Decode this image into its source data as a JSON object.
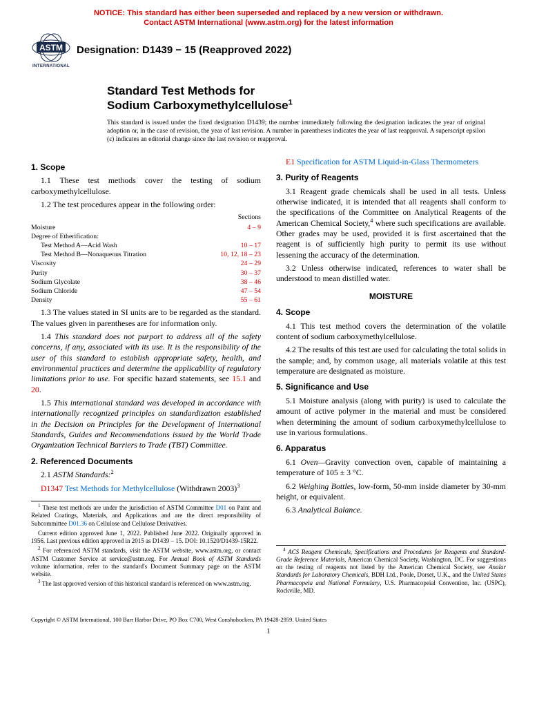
{
  "notice": {
    "line1": "NOTICE: This standard has either been superseded and replaced by a new version or withdrawn.",
    "line2": "Contact ASTM International (www.astm.org) for the latest information"
  },
  "logo": {
    "top_text": "INTERNATIONAL",
    "color": "#1a2a4a"
  },
  "designation": "Designation: D1439 − 15 (Reapproved 2022)",
  "title_line1": "Standard Test Methods for",
  "title_line2": "Sodium Carboxymethylcellulose",
  "title_sup": "1",
  "issued_note": "This standard is issued under the fixed designation D1439; the number immediately following the designation indicates the year of original adoption or, in the case of revision, the year of last revision. A number in parentheses indicates the year of last reapproval. A superscript epsilon (ε) indicates an editorial change since the last revision or reapproval.",
  "left": {
    "h1": "1. Scope",
    "p1_1": "1.1 These test methods cover the testing of sodium carboxymethylcellulose.",
    "p1_2": "1.2 The test procedures appear in the following order:",
    "sections_header": "Sections",
    "sections": [
      {
        "label": "Moisture",
        "range": "4 – 9",
        "indent": false
      },
      {
        "label": "Degree of Etherification:",
        "range": "",
        "indent": false
      },
      {
        "label": "Test Method A—Acid Wash",
        "range": "10 – 17",
        "indent": true
      },
      {
        "label": "Test Method B—Nonaqueous Titration",
        "range": "10, 12, 18 – 23",
        "indent": true
      },
      {
        "label": "Viscosity",
        "range": "24 – 29",
        "indent": false
      },
      {
        "label": "Purity",
        "range": "30 – 37",
        "indent": false
      },
      {
        "label": "Sodium Glycolate",
        "range": "38 – 46",
        "indent": false
      },
      {
        "label": "Sodium Chloride",
        "range": "47 – 54",
        "indent": false
      },
      {
        "label": "Density",
        "range": "55 – 61",
        "indent": false
      }
    ],
    "p1_3": "1.3 The values stated in SI units are to be regarded as the standard. The values given in parentheses are for information only.",
    "p1_4a": "1.4 ",
    "p1_4b": "This standard does not purport to address all of the safety concerns, if any, associated with its use. It is the responsibility of the user of this standard to establish appropriate safety, health, and environmental practices and determine the applicability of regulatory limitations prior to use.",
    "p1_4c": " For specific hazard statements, see ",
    "p1_4d": "15.1",
    "p1_4e": " and ",
    "p1_4f": "20",
    "p1_4g": ".",
    "p1_5a": "1.5 ",
    "p1_5b": "This international standard was developed in accordance with internationally recognized principles on standardization established in the Decision on Principles for the Development of International Standards, Guides and Recommendations issued by the World Trade Organization Technical Barriers to Trade (TBT) Committee.",
    "h2": "2. Referenced Documents",
    "p2_1a": "2.1 ",
    "p2_1b": "ASTM Standards:",
    "p2_1sup": "2",
    "ref1a": "D1347",
    "ref1b": " Test Methods for Methylcellulose",
    "ref1c": " (Withdrawn 2003)",
    "ref1sup": "3",
    "fn1a": "These test methods are under the jurisdiction of ASTM Committee ",
    "fn1b": "D01",
    "fn1c": " on Paint and Related Coatings, Materials, and Applications and are the direct responsibility of Subcommittee ",
    "fn1d": "D01.36",
    "fn1e": " on Cellulose and Cellulose Derivatives.",
    "fn1f": "Current edition approved June 1, 2022. Published June 2022. Originally approved in 1956. Last previous edition approved in 2015 as D1439 – 15. DOI: 10.1520/D1439-15R22.",
    "fn2a": "For referenced ASTM standards, visit the ASTM website, www.astm.org, or contact ASTM Customer Service at service@astm.org. For ",
    "fn2b": "Annual Book of ASTM Standards",
    "fn2c": " volume information, refer to the standard's Document Summary page on the ASTM website.",
    "fn3": "The last approved version of this historical standard is referenced on www.astm.org."
  },
  "right": {
    "ref_e1a": "E1",
    "ref_e1b": " Specification for ASTM Liquid-in-Glass Thermometers",
    "h3": "3. Purity of Reagents",
    "p3_1a": "3.1 Reagent grade chemicals shall be used in all tests. Unless otherwise indicated, it is intended that all reagents shall conform to the specifications of the Committee on Analytical Reagents of the American Chemical Society,",
    "p3_1sup": "4",
    "p3_1b": " where such specifications are available. Other grades may be used, provided it is first ascertained that the reagent is of sufficiently high purity to permit its use without lessening the accuracy of the determination.",
    "p3_2": "3.2 Unless otherwise indicated, references to water shall be understood to mean distilled water.",
    "moisture_head": "MOISTURE",
    "h4": "4. Scope",
    "p4_1": "4.1 This test method covers the determination of the volatile content of sodium carboxymethylcellulose.",
    "p4_2": "4.2 The results of this test are used for calculating the total solids in the sample; and, by common usage, all materials volatile at this test temperature are designated as moisture.",
    "h5": "5. Significance and Use",
    "p5_1": "5.1 Moisture analysis (along with purity) is used to calculate the amount of active polymer in the material and must be considered when determining the amount of sodium carboxymethylcellulose to use in various formulations.",
    "h6": "6. Apparatus",
    "p6_1a": "6.1 ",
    "p6_1b": "Oven—",
    "p6_1c": "Gravity convection oven, capable of maintaining a temperature of 105 ± 3 °C.",
    "p6_2a": "6.2 ",
    "p6_2b": "Weighing Bottles,",
    "p6_2c": " low-form, 50-mm inside diameter by 30-mm height, or equivalent.",
    "p6_3a": "6.3 ",
    "p6_3b": "Analytical Balance.",
    "fn4a": "ACS Reagent Chemicals, Specifications and Procedures for Reagents and Standard-Grade Reference Materials",
    "fn4b": ", American Chemical Society, Washington, DC. For suggestions on the testing of reagents not listed by the American Chemical Society, see ",
    "fn4c": "Analar Standards for Laboratory Chemicals",
    "fn4d": ", BDH Ltd., Poole, Dorset, U.K., and the ",
    "fn4e": "United States Pharmacopeia and National Formulary",
    "fn4f": ", U.S. Pharmacopeial Convention, Inc. (USPC), Rockville, MD."
  },
  "copyright": "Copyright © ASTM International, 100 Barr Harbor Drive, PO Box C700, West Conshohocken, PA 19428-2959. United States",
  "pagenum": "1",
  "colors": {
    "red": "#cc0000",
    "link": "#0066cc"
  }
}
